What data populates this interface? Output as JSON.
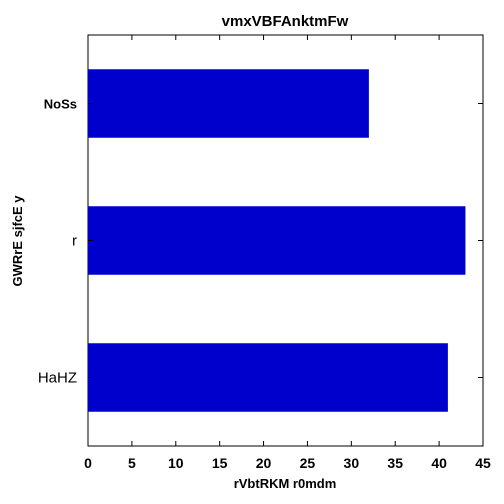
{
  "chart_data": {
    "type": "bar",
    "orientation": "horizontal",
    "title": "vmxVBFAnktmFw",
    "xlabel": "rVbtRKM  r0mdm",
    "ylabel": "GWRrE sjfcE y",
    "categories": [
      "NoSs",
      "r",
      "HaHZ"
    ],
    "values": [
      32,
      43,
      41
    ],
    "xlim": [
      0,
      45
    ],
    "xticks": [
      "0",
      "5",
      "10",
      "15",
      "20",
      "25",
      "30",
      "35",
      "40",
      "45"
    ],
    "grid": false,
    "legend": "none",
    "bar_color": "#0000cc"
  }
}
